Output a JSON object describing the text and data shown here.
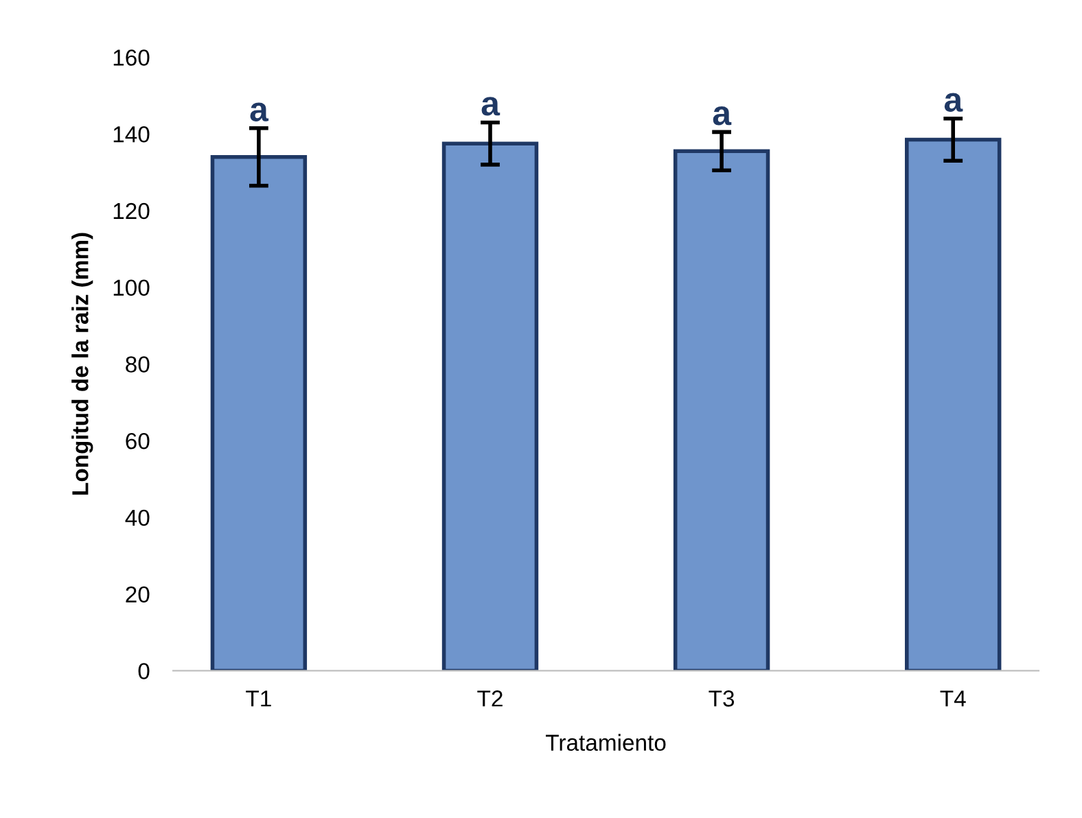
{
  "chart_data": {
    "type": "bar",
    "xlabel": "Tratamiento",
    "ylabel": "Longitud de la raiz (mm)",
    "categories": [
      "T1",
      "T2",
      "T3",
      "T4"
    ],
    "values": [
      134,
      137.5,
      135.5,
      138.5
    ],
    "errors": [
      7.5,
      5.5,
      5,
      5.5
    ],
    "color": "#6f95cc",
    "ylim": [
      0,
      160
    ],
    "yticks": [
      0,
      20,
      40,
      60,
      80,
      100,
      120,
      140,
      160
    ],
    "grid": false,
    "annotations": [
      {
        "text": "a",
        "x": "T1",
        "y": 141.5
      },
      {
        "text": "a",
        "x": "T2",
        "y": 143
      },
      {
        "text": "a",
        "x": "T3",
        "y": 140.5
      },
      {
        "text": "a",
        "x": "T4",
        "y": 144
      }
    ]
  }
}
